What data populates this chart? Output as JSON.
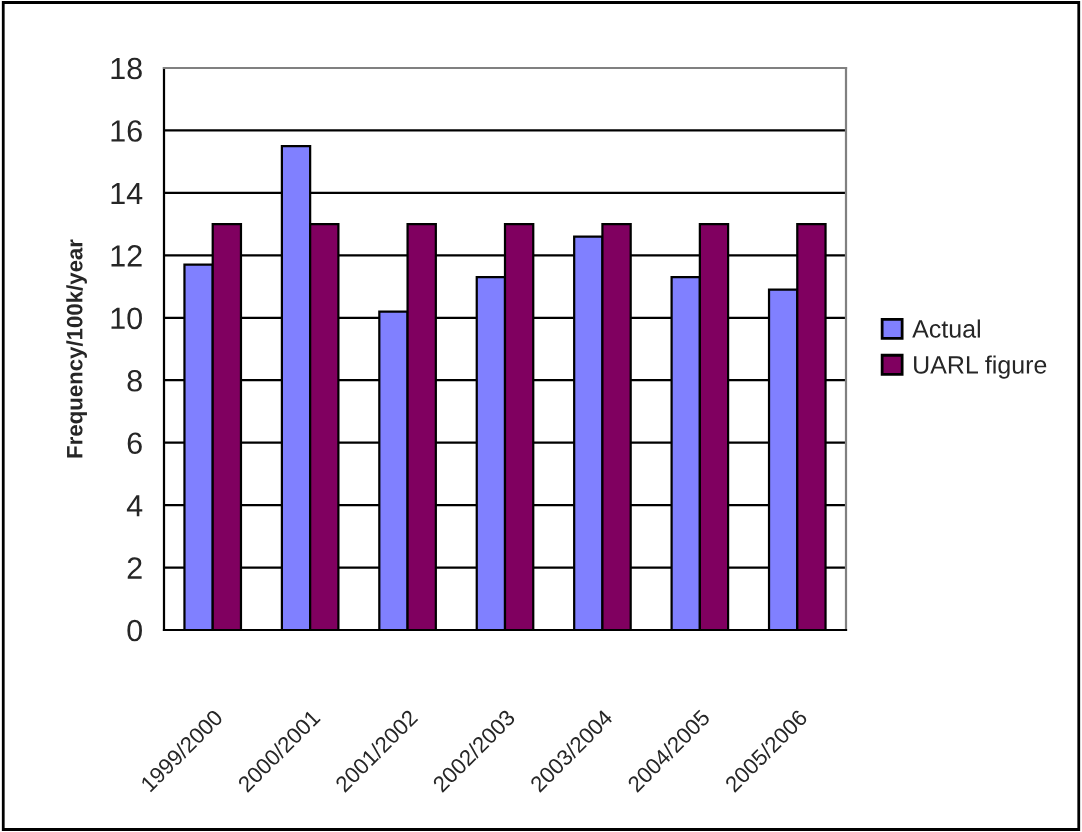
{
  "chart_data": {
    "type": "bar",
    "ylabel": "Frequency/100k/year",
    "categories": [
      "1999/2000",
      "2000/2001",
      "2001/2002",
      "2002/2003",
      "2003/2004",
      "2004/2005",
      "2005/2006"
    ],
    "series": [
      {
        "name": "Actual",
        "color": "#8080ff",
        "values": [
          11.7,
          15.5,
          10.2,
          11.3,
          12.6,
          11.3,
          10.9
        ]
      },
      {
        "name": "UARL figure",
        "color": "#800060",
        "values": [
          13,
          13,
          13,
          13,
          13,
          13,
          13
        ]
      }
    ],
    "ylim": [
      0,
      18
    ],
    "yticks": [
      0,
      2,
      4,
      6,
      8,
      10,
      12,
      14,
      16,
      18
    ],
    "grid": "y",
    "legend": "right"
  }
}
